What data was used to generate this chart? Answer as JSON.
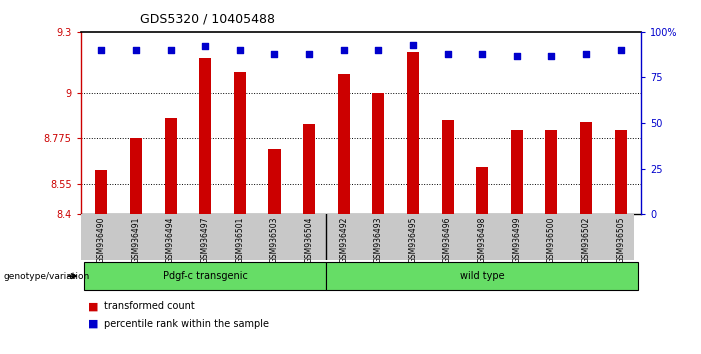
{
  "title": "GDS5320 / 10405488",
  "categories": [
    "GSM936490",
    "GSM936491",
    "GSM936494",
    "GSM936497",
    "GSM936501",
    "GSM936503",
    "GSM936504",
    "GSM936492",
    "GSM936493",
    "GSM936495",
    "GSM936496",
    "GSM936498",
    "GSM936499",
    "GSM936500",
    "GSM936502",
    "GSM936505"
  ],
  "bar_values": [
    8.62,
    8.775,
    8.875,
    9.17,
    9.1,
    8.72,
    8.845,
    9.09,
    9.0,
    9.2,
    8.865,
    8.635,
    8.815,
    8.815,
    8.855,
    8.815
  ],
  "percentile_values": [
    90,
    90,
    90,
    92,
    90,
    88,
    88,
    90,
    90,
    93,
    88,
    88,
    87,
    87,
    88,
    90
  ],
  "bar_color": "#cc0000",
  "percentile_color": "#0000cc",
  "ylim_left": [
    8.4,
    9.3
  ],
  "ylim_right": [
    0,
    100
  ],
  "yticks_left": [
    8.4,
    8.55,
    8.775,
    9.0,
    9.3
  ],
  "yticks_right": [
    0,
    25,
    50,
    75,
    100
  ],
  "ytick_labels_left": [
    "8.4",
    "8.55",
    "8.775",
    "9",
    "9.3"
  ],
  "ytick_labels_right": [
    "0",
    "25",
    "50",
    "75",
    "100%"
  ],
  "hlines": [
    8.55,
    8.775,
    9.0
  ],
  "transgenic_count": 7,
  "wild_type_count": 9,
  "transgenic_label": "Pdgf-c transgenic",
  "wild_type_label": "wild type",
  "genotype_label": "genotype/variation",
  "legend_bar_label": "transformed count",
  "legend_pct_label": "percentile rank within the sample",
  "bar_color_hex": "#cc0000",
  "pct_color_hex": "#0000cc",
  "gray_bg": "#c8c8c8",
  "green_bg": "#66dd66",
  "fig_width": 7.01,
  "fig_height": 3.54
}
